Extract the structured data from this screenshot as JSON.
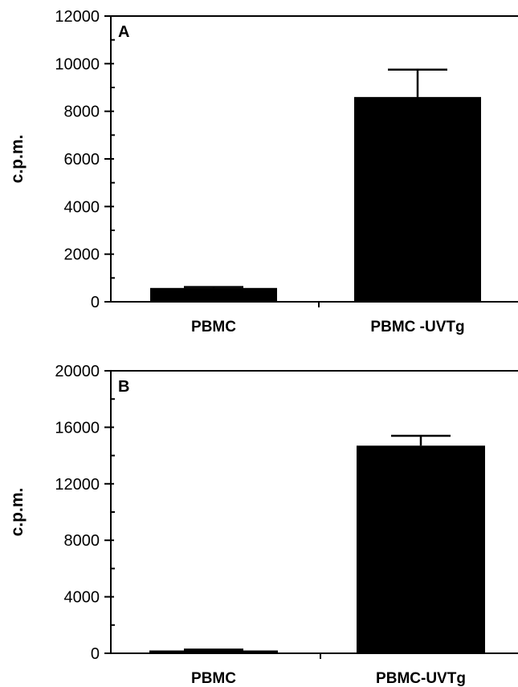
{
  "chart_data": [
    {
      "panel_label": "A",
      "type": "bar",
      "categories": [
        "PBMC",
        "PBMC -UVTg"
      ],
      "values": [
        580,
        8600
      ],
      "errors": [
        40,
        1150
      ],
      "ylabel": "c.p.m.",
      "ylim": [
        0,
        12000
      ],
      "yticks": [
        "0",
        "2000",
        "4000",
        "6000",
        "8000",
        "10000",
        "12000"
      ],
      "minor_ticks": true,
      "grid": false,
      "bar_color": "#000000"
    },
    {
      "panel_label": "B",
      "type": "bar",
      "categories": [
        "PBMC",
        "PBMC-UVTg"
      ],
      "values": [
        200,
        14700
      ],
      "errors": [
        60,
        700
      ],
      "ylabel": "c.p.m.",
      "ylim": [
        0,
        20000
      ],
      "yticks": [
        "0",
        "4000",
        "8000",
        "12000",
        "16000",
        "20000"
      ],
      "minor_ticks": true,
      "grid": false,
      "bar_color": "#000000"
    }
  ]
}
